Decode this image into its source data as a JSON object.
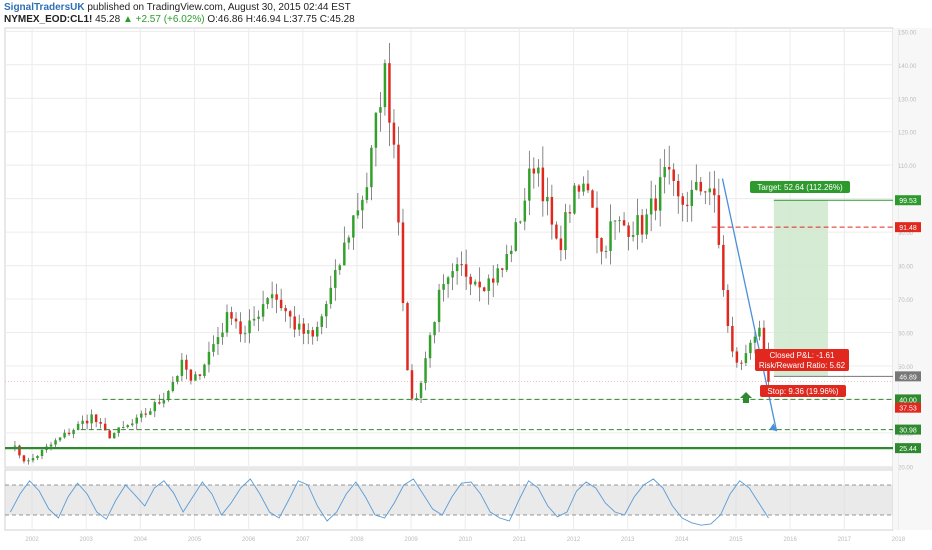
{
  "header": {
    "publisher": "SignalTradersUK",
    "published_text": "published on TradingView.com, August 30, 2015 02:44 EST",
    "symbol": "NYMEX_EOD:CL1!",
    "last": "45.28",
    "change": "▲ +2.57 (+6.02%)",
    "open": "O:46.86",
    "high": "H:46.94",
    "low": "L:37.75",
    "close": "C:45.28"
  },
  "colors": {
    "up": "#33a02c",
    "down": "#e0281e",
    "trend_line": "#4a90d9",
    "target_zone": "#cfe8cc",
    "target_label_bg": "#2e9a2e",
    "stop_label_bg": "#e0281e",
    "support_line": "#2f8a2f",
    "resistance_line": "#e0281e",
    "oscillator_line": "#5b9bd5",
    "oscillator_band": "#dcdcdc"
  },
  "chart_data": {
    "type": "candlestick",
    "interval": "monthly",
    "x_range": [
      2001.5,
      2017.9
    ],
    "ylim": [
      19.5,
      151
    ],
    "x_ticks": [
      "2002",
      "2003",
      "2004",
      "2005",
      "2006",
      "2007",
      "2008",
      "2009",
      "2010",
      "2011",
      "2012",
      "2013",
      "2014",
      "2015",
      "2016",
      "2017",
      "2018"
    ],
    "y_ticks": [
      "150.00",
      "140.00",
      "130.00",
      "120.00",
      "110.00",
      "100.00",
      "90.00",
      "80.00",
      "70.00",
      "60.00",
      "50.00",
      "40.00",
      "30.00",
      "20.00"
    ],
    "anchors": [
      [
        2001.6,
        27
      ],
      [
        2001.9,
        21
      ],
      [
        2002.4,
        27
      ],
      [
        2003.1,
        35
      ],
      [
        2003.4,
        29
      ],
      [
        2003.9,
        33
      ],
      [
        2004.4,
        40
      ],
      [
        2004.8,
        51
      ],
      [
        2004.95,
        44
      ],
      [
        2005.3,
        55
      ],
      [
        2005.7,
        67
      ],
      [
        2005.9,
        58
      ],
      [
        2006.4,
        73
      ],
      [
        2006.9,
        61
      ],
      [
        2007.2,
        58
      ],
      [
        2007.6,
        76
      ],
      [
        2007.9,
        93
      ],
      [
        2008.2,
        105
      ],
      [
        2008.5,
        139
      ],
      [
        2008.7,
        115
      ],
      [
        2008.95,
        42
      ],
      [
        2009.1,
        40
      ],
      [
        2009.5,
        70
      ],
      [
        2009.9,
        79
      ],
      [
        2010.4,
        75
      ],
      [
        2010.7,
        79
      ],
      [
        2010.95,
        91
      ],
      [
        2011.3,
        113
      ],
      [
        2011.7,
        84
      ],
      [
        2011.95,
        99
      ],
      [
        2012.3,
        105
      ],
      [
        2012.5,
        83
      ],
      [
        2012.7,
        92
      ],
      [
        2012.95,
        92
      ],
      [
        2013.3,
        92
      ],
      [
        2013.7,
        107
      ],
      [
        2013.95,
        98
      ],
      [
        2014.2,
        101
      ],
      [
        2014.5,
        105
      ],
      [
        2014.6,
        98
      ],
      [
        2014.9,
        54
      ],
      [
        2015.1,
        50
      ],
      [
        2015.3,
        60
      ],
      [
        2015.45,
        59
      ],
      [
        2015.6,
        45
      ],
      [
        2015.65,
        45.28
      ]
    ],
    "horizontal_levels": [
      {
        "price": 91.48,
        "label": "91.48",
        "style": "dashed",
        "color": "#e0281e"
      },
      {
        "price": 99.53,
        "label": "99.53",
        "style": "solid",
        "color": "#2e9a2e"
      },
      {
        "price": 46.89,
        "label": "46.89",
        "style": "solid",
        "color": "#777777"
      },
      {
        "price": 40.0,
        "label": "40.00",
        "style": "dashed",
        "color": "#2f8a2f"
      },
      {
        "price": 37.53,
        "label": "37.53",
        "style": "solid",
        "color": "#e0281e"
      },
      {
        "price": 30.98,
        "label": "30.98",
        "style": "dashed",
        "color": "#2f8a2f"
      },
      {
        "price": 25.44,
        "label": "25.44",
        "style": "solid",
        "color": "#2f8a2f"
      }
    ],
    "trend_line": {
      "from": [
        2014.75,
        106
      ],
      "to": [
        2015.75,
        30.5
      ]
    },
    "target_zone": {
      "x": [
        2015.7,
        2016.7
      ],
      "y": [
        46.89,
        99.53
      ]
    },
    "annotations": {
      "target": "Target: 52.64 (112.26%)",
      "closed_pnl": "Closed P&L: -1.61",
      "risk_reward": "Risk/Reward Ratio: 5.62",
      "stop": "Stop: 9.36 (19.96%)"
    },
    "oscillator": {
      "ylim": [
        0,
        100
      ],
      "band": [
        25,
        75
      ],
      "values": [
        30,
        60,
        82,
        65,
        35,
        20,
        55,
        78,
        60,
        30,
        18,
        50,
        75,
        58,
        40,
        70,
        82,
        62,
        30,
        55,
        80,
        60,
        25,
        45,
        70,
        85,
        60,
        30,
        20,
        50,
        82,
        75,
        40,
        15,
        30,
        60,
        80,
        55,
        25,
        20,
        45,
        75,
        85,
        60,
        35,
        25,
        55,
        78,
        80,
        60,
        30,
        20,
        15,
        50,
        82,
        70,
        40,
        22,
        30,
        65,
        80,
        70,
        45,
        30,
        25,
        55,
        75,
        85,
        70,
        40,
        20,
        12,
        8,
        10,
        25,
        60,
        82,
        70,
        45,
        20
      ]
    }
  }
}
